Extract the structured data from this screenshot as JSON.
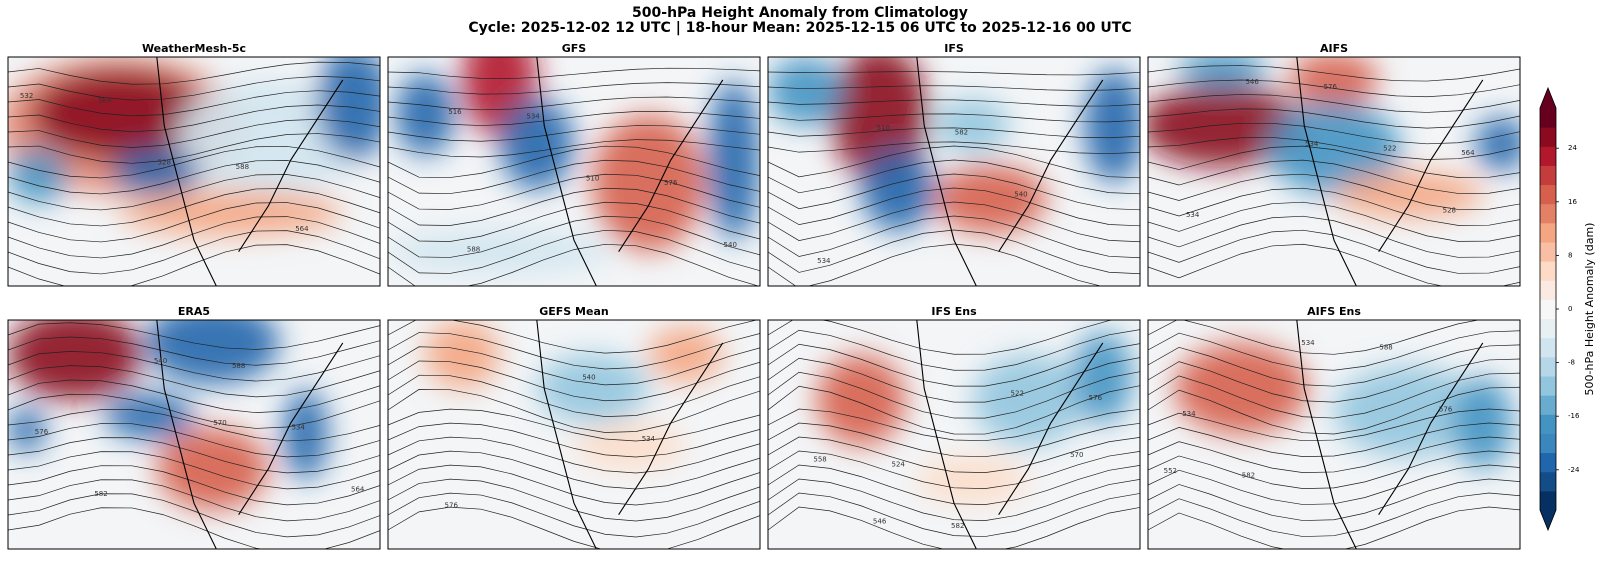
{
  "title": "500-hPa Height Anomaly from Climatology",
  "subtitle": "Cycle: 2025-12-02 12 UTC | 18-hour Mean: 2025-12-15 06 UTC to 2025-12-16 00 UTC",
  "panels": [
    {
      "title": "WeatherMesh-5c",
      "contour_labels": [
        532,
        528,
        564,
        564,
        588
      ]
    },
    {
      "title": "GFS",
      "contour_labels": [
        516,
        510,
        540,
        534,
        576,
        588
      ]
    },
    {
      "title": "IFS",
      "contour_labels": [
        510,
        540,
        534,
        582
      ]
    },
    {
      "title": "AIFS",
      "contour_labels": [
        534,
        528,
        546,
        522,
        534,
        576,
        564
      ]
    },
    {
      "title": "ERA5",
      "contour_labels": [
        570,
        564,
        540,
        534,
        582,
        588,
        576
      ]
    },
    {
      "title": "GEFS Mean",
      "contour_labels": [
        534,
        576,
        540
      ]
    },
    {
      "title": "IFS Ens",
      "contour_labels": [
        570,
        546,
        522,
        558,
        582,
        576,
        524
      ]
    },
    {
      "title": "AIFS Ens",
      "contour_labels": [
        552,
        534,
        576,
        582,
        588,
        534
      ]
    }
  ],
  "colorbar": {
    "label": "500-hPa Height Anomaly (dam)",
    "lim": [
      -30,
      30
    ],
    "ticks": [
      -24,
      -16,
      -8,
      0,
      8,
      16,
      24
    ],
    "extend": "both"
  }
}
